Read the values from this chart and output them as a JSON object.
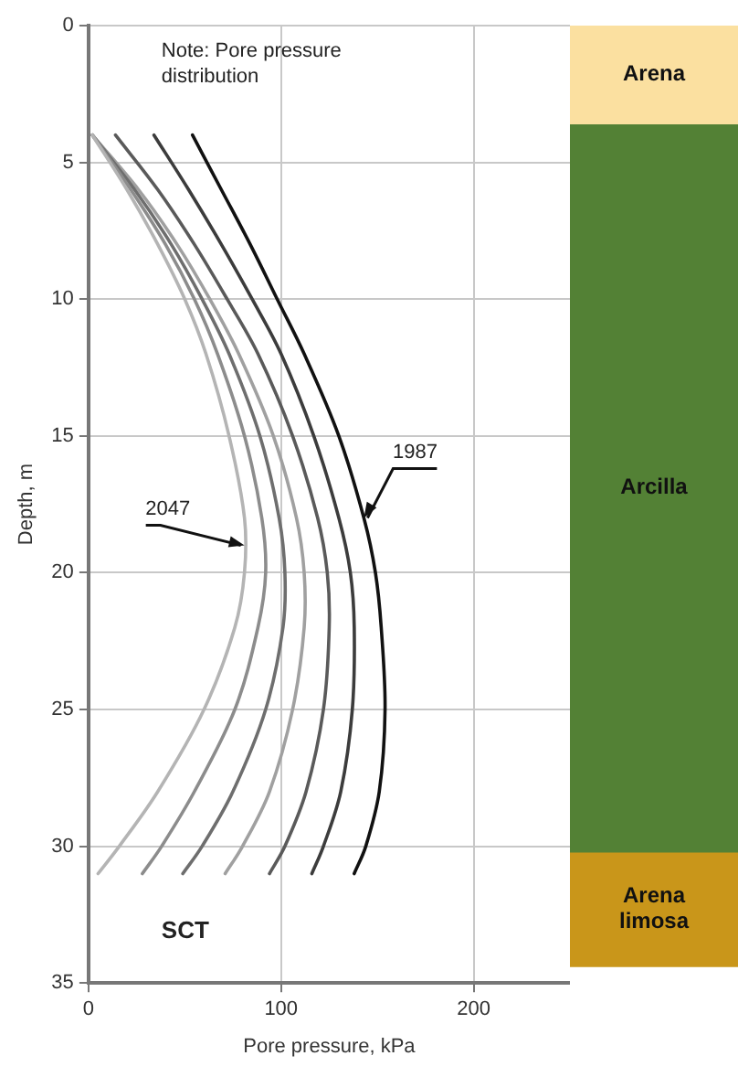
{
  "chart_data": [
    {
      "type": "line",
      "xlabel": "Pore pressure, kPa",
      "ylabel": "Depth, m",
      "xlim": [
        0,
        250
      ],
      "xticks": [
        0,
        100,
        200
      ],
      "ylim": [
        35,
        0
      ],
      "yticks": [
        0,
        5,
        10,
        15,
        20,
        25,
        30,
        35
      ],
      "grid": true,
      "line_style": "solid",
      "marker": "none",
      "legend": false,
      "annotations": [
        "Note: Pore pressure distribution",
        "SCT",
        {
          "text": "1987",
          "x": 143,
          "y": 18
        },
        {
          "text": "2047",
          "x": 81,
          "y": 19
        }
      ],
      "series": [
        {
          "color": "#b4b4b4",
          "x": [
            2,
            20,
            36,
            50,
            61,
            73,
            81,
            81,
            76,
            60,
            36,
            16,
            5
          ],
          "values": [
            4,
            6,
            8,
            10,
            12,
            15,
            18,
            20,
            22,
            25,
            28,
            30,
            31
          ]
        },
        {
          "color": "#8c8c8c",
          "x": [
            2,
            22,
            40,
            55,
            67,
            81,
            90,
            92,
            88,
            76,
            55,
            38,
            28
          ],
          "values": [
            4,
            6,
            8,
            10,
            12,
            15,
            18,
            20,
            22,
            25,
            28,
            30,
            31
          ]
        },
        {
          "color": "#6e6e6e",
          "x": [
            2,
            24,
            43,
            59,
            73,
            89,
            99,
            102,
            101,
            92,
            75,
            59,
            49
          ],
          "values": [
            4,
            6,
            8,
            10,
            12,
            15,
            18,
            20,
            22,
            25,
            28,
            30,
            31
          ]
        },
        {
          "color": "#a0a0a0",
          "x": [
            2,
            26,
            46,
            63,
            78,
            96,
            108,
            112,
            112,
            106,
            94,
            80,
            71
          ],
          "values": [
            4,
            6,
            8,
            10,
            12,
            15,
            18,
            20,
            22,
            25,
            28,
            30,
            31
          ]
        },
        {
          "color": "#5a5a5a",
          "x": [
            14,
            36,
            55,
            72,
            88,
            106,
            119,
            124,
            125,
            122,
            113,
            102,
            94
          ],
          "values": [
            4,
            6,
            8,
            10,
            12,
            15,
            18,
            20,
            22,
            25,
            28,
            30,
            31
          ]
        },
        {
          "color": "#3c3c3c",
          "x": [
            34,
            52,
            69,
            85,
            100,
            117,
            130,
            136,
            138,
            137,
            131,
            122,
            116
          ],
          "values": [
            4,
            6,
            8,
            10,
            12,
            15,
            18,
            20,
            22,
            25,
            28,
            30,
            31
          ]
        },
        {
          "color": "#111111",
          "x": [
            54,
            69,
            84,
            98,
            112,
            130,
            143,
            149,
            152,
            154,
            151,
            144,
            138
          ],
          "values": [
            4,
            6,
            8,
            10,
            12,
            15,
            18,
            20,
            22,
            25,
            28,
            30,
            31
          ]
        }
      ]
    },
    {
      "type": "bar",
      "stacked": true,
      "categories": [
        null
      ],
      "ylim": [
        35,
        0
      ],
      "tick_labels": false,
      "legend": false,
      "grid": false,
      "series": [
        {
          "name": "Arena",
          "color": "#fbe0a0",
          "values": [
            3.6
          ]
        },
        {
          "name": "Arcilla",
          "color": "#538135",
          "values": [
            26.7
          ]
        },
        {
          "name": "Arena limosa",
          "color": "#c9961a",
          "values": [
            4.2
          ]
        }
      ]
    }
  ]
}
